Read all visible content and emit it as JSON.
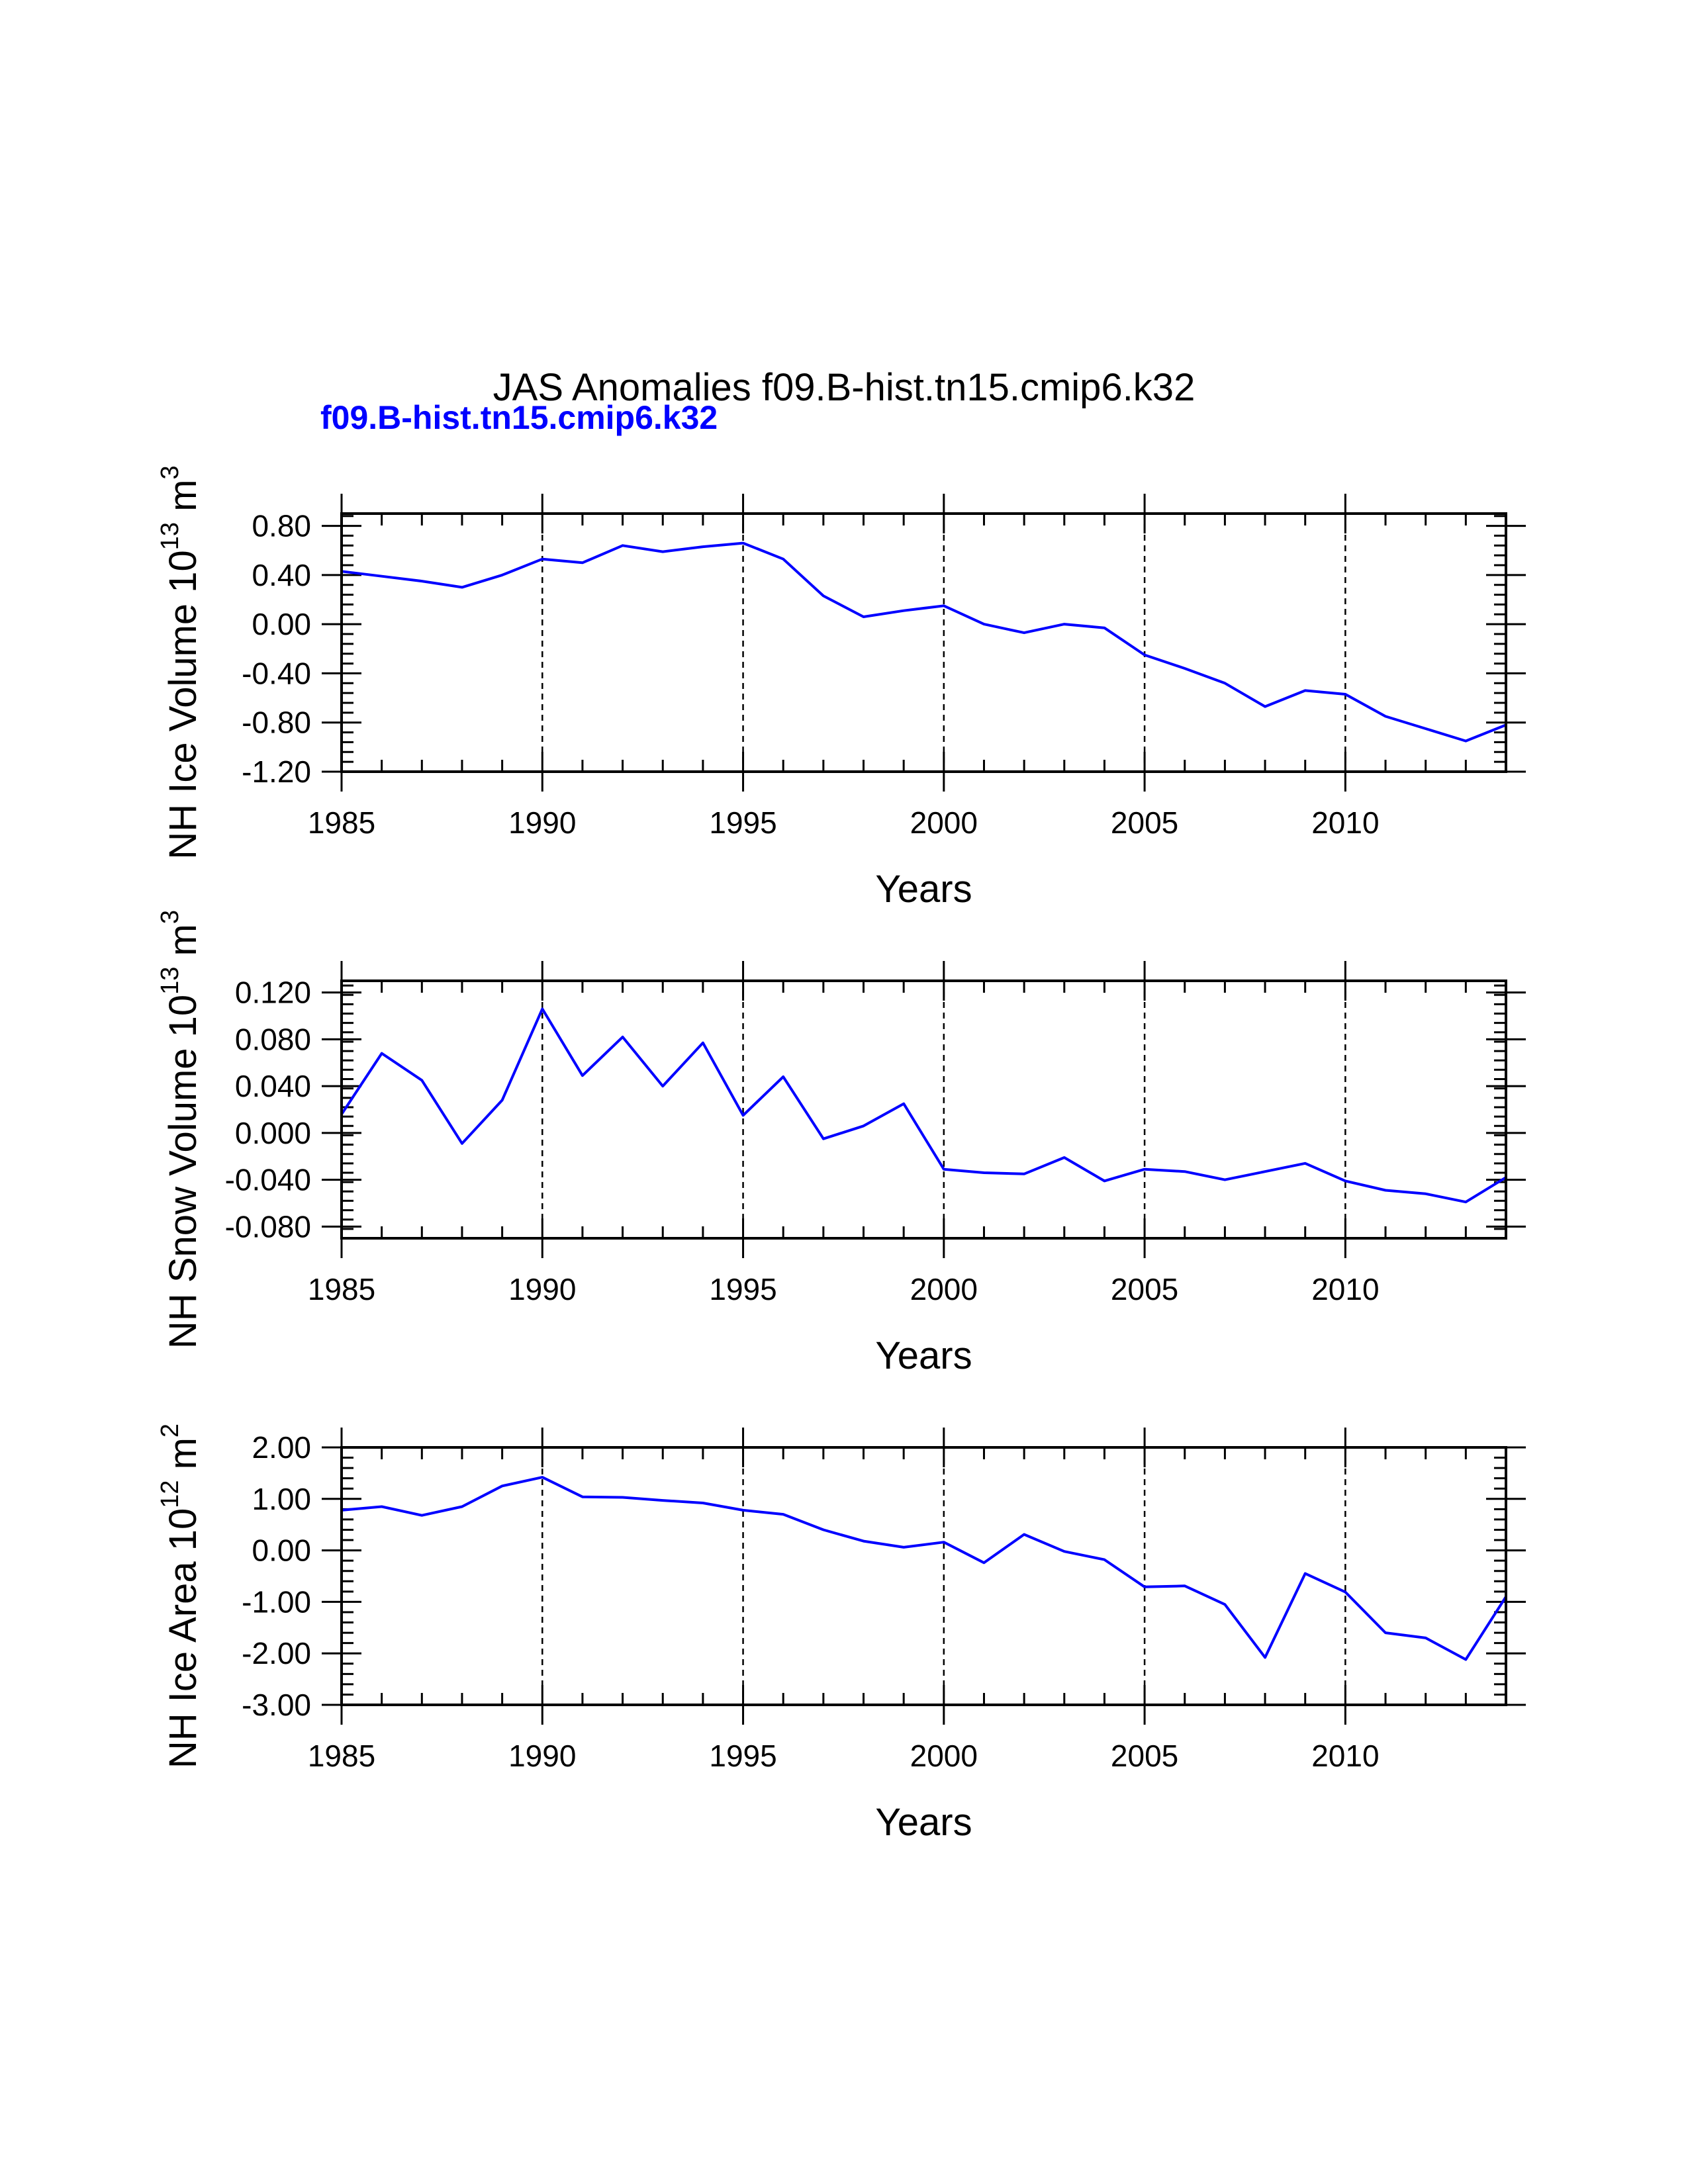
{
  "title": "JAS Anomalies f09.B-hist.tn15.cmip6.k32",
  "legend_label": "f09.B-hist.tn15.cmip6.k32",
  "colors": {
    "series": "#0000ff",
    "axis": "#000000"
  },
  "chart_data": [
    {
      "type": "line",
      "ylabel_main": "NH Ice Volume 10",
      "ylabel_exp": "13",
      "ylabel_unit": " m",
      "ylabel_unit_exp": "3",
      "xlabel": "Years",
      "xlim": [
        1985,
        2014
      ],
      "ylim": [
        -1.2,
        0.9
      ],
      "xticks": [
        1985,
        1990,
        1995,
        2000,
        2005,
        2010
      ],
      "xtick_labels": [
        "1985",
        "1990",
        "1995",
        "2000",
        "2005",
        "2010"
      ],
      "yticks": [
        -1.2,
        -0.8,
        -0.4,
        0.0,
        0.4,
        0.8
      ],
      "ytick_labels": [
        "-1.20",
        "-0.80",
        "-0.40",
        "0.00",
        "0.40",
        "0.80"
      ],
      "dashed_x": [
        1990,
        1995,
        2000,
        2005,
        2010
      ],
      "series": [
        {
          "name": "f09.B-hist.tn15.cmip6.k32",
          "x": [
            1985,
            1986,
            1987,
            1988,
            1989,
            1990,
            1991,
            1992,
            1993,
            1994,
            1995,
            1996,
            1997,
            1998,
            1999,
            2000,
            2001,
            2002,
            2003,
            2004,
            2005,
            2006,
            2007,
            2008,
            2009,
            2010,
            2011,
            2012,
            2013,
            2014
          ],
          "values": [
            0.43,
            0.39,
            0.35,
            0.3,
            0.4,
            0.53,
            0.5,
            0.64,
            0.59,
            0.63,
            0.66,
            0.53,
            0.23,
            0.06,
            0.11,
            0.15,
            0.0,
            -0.07,
            0.0,
            -0.03,
            -0.25,
            -0.36,
            -0.48,
            -0.67,
            -0.54,
            -0.57,
            -0.75,
            -0.85,
            -0.95,
            -0.82
          ]
        }
      ]
    },
    {
      "type": "line",
      "ylabel_main": "NH Snow Volume 10",
      "ylabel_exp": "13",
      "ylabel_unit": " m",
      "ylabel_unit_exp": "3",
      "xlabel": "Years",
      "xlim": [
        1985,
        2014
      ],
      "ylim": [
        -0.09,
        0.13
      ],
      "xticks": [
        1985,
        1990,
        1995,
        2000,
        2005,
        2010
      ],
      "xtick_labels": [
        "1985",
        "1990",
        "1995",
        "2000",
        "2005",
        "2010"
      ],
      "yticks": [
        -0.08,
        -0.04,
        0.0,
        0.04,
        0.08,
        0.12
      ],
      "ytick_labels": [
        "-0.080",
        "-0.040",
        "0.000",
        "0.040",
        "0.080",
        "0.120"
      ],
      "dashed_x": [
        1990,
        1995,
        2000,
        2005,
        2010
      ],
      "series": [
        {
          "name": "f09.B-hist.tn15.cmip6.k32",
          "x": [
            1985,
            1986,
            1987,
            1988,
            1989,
            1990,
            1991,
            1992,
            1993,
            1994,
            1995,
            1996,
            1997,
            1998,
            1999,
            2000,
            2001,
            2002,
            2003,
            2004,
            2005,
            2006,
            2007,
            2008,
            2009,
            2010,
            2011,
            2012,
            2013,
            2014
          ],
          "values": [
            0.016,
            0.068,
            0.045,
            -0.009,
            0.028,
            0.106,
            0.049,
            0.082,
            0.04,
            0.077,
            0.015,
            0.048,
            -0.005,
            0.006,
            0.025,
            -0.031,
            -0.034,
            -0.035,
            -0.021,
            -0.041,
            -0.031,
            -0.033,
            -0.04,
            -0.033,
            -0.026,
            -0.041,
            -0.049,
            -0.052,
            -0.059,
            -0.038
          ]
        }
      ]
    },
    {
      "type": "line",
      "ylabel_main": "NH Ice Area 10",
      "ylabel_exp": "12",
      "ylabel_unit": " m",
      "ylabel_unit_exp": "2",
      "xlabel": "Years",
      "xlim": [
        1985,
        2014
      ],
      "ylim": [
        -3.0,
        2.0
      ],
      "xticks": [
        1985,
        1990,
        1995,
        2000,
        2005,
        2010
      ],
      "xtick_labels": [
        "1985",
        "1990",
        "1995",
        "2000",
        "2005",
        "2010"
      ],
      "yticks": [
        -3.0,
        -2.0,
        -1.0,
        0.0,
        1.0,
        2.0
      ],
      "ytick_labels": [
        "-3.00",
        "-2.00",
        "-1.00",
        "0.00",
        "1.00",
        "2.00"
      ],
      "dashed_x": [
        1990,
        1995,
        2000,
        2005,
        2010
      ],
      "series": [
        {
          "name": "f09.B-hist.tn15.cmip6.k32",
          "x": [
            1985,
            1986,
            1987,
            1988,
            1989,
            1990,
            1991,
            1992,
            1993,
            1994,
            1995,
            1996,
            1997,
            1998,
            1999,
            2000,
            2001,
            2002,
            2003,
            2004,
            2005,
            2006,
            2007,
            2008,
            2009,
            2010,
            2011,
            2012,
            2013,
            2014
          ],
          "values": [
            0.78,
            0.85,
            0.68,
            0.85,
            1.25,
            1.42,
            1.04,
            1.03,
            0.97,
            0.92,
            0.78,
            0.7,
            0.4,
            0.18,
            0.06,
            0.16,
            -0.24,
            0.31,
            -0.02,
            -0.18,
            -0.71,
            -0.69,
            -1.05,
            -2.08,
            -0.45,
            -0.81,
            -1.6,
            -1.7,
            -2.12,
            -0.9
          ]
        }
      ]
    }
  ]
}
